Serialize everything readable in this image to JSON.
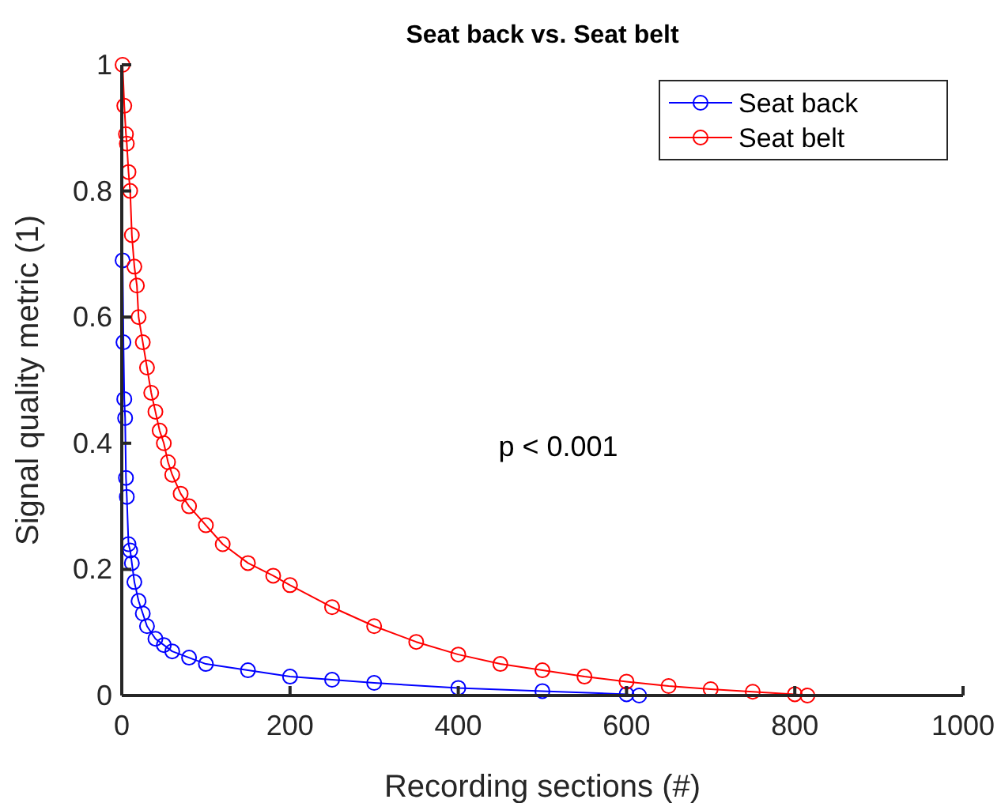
{
  "chart_data": {
    "type": "line",
    "title": "Seat back vs. Seat belt",
    "xlabel": "Recording sections (#)",
    "ylabel": "Signal quality metric (1)",
    "xlim": [
      0,
      1000
    ],
    "xticks": [
      0,
      200,
      400,
      600,
      800,
      1000
    ],
    "ylim": [
      0,
      1
    ],
    "yticks": [
      0,
      0.2,
      0.4,
      0.6,
      0.8,
      1
    ],
    "marker": "circle",
    "legend": "top right",
    "annotations": [
      "p < 0.001"
    ],
    "series": [
      {
        "name": "Seat back",
        "color": "#0000ff",
        "x": [
          1,
          2,
          3,
          4,
          5,
          6,
          8,
          10,
          12,
          15,
          20,
          25,
          30,
          40,
          50,
          60,
          80,
          100,
          150,
          200,
          250,
          300,
          400,
          500,
          600,
          615
        ],
        "values": [
          0.69,
          0.56,
          0.47,
          0.44,
          0.345,
          0.315,
          0.24,
          0.23,
          0.21,
          0.18,
          0.15,
          0.13,
          0.11,
          0.09,
          0.08,
          0.07,
          0.06,
          0.05,
          0.04,
          0.03,
          0.025,
          0.02,
          0.012,
          0.007,
          0.002,
          0
        ]
      },
      {
        "name": "Seat belt",
        "color": "#ff0000",
        "x": [
          1,
          3,
          5,
          6,
          8,
          10,
          12,
          15,
          18,
          20,
          25,
          30,
          35,
          40,
          45,
          50,
          55,
          60,
          70,
          80,
          100,
          120,
          150,
          180,
          200,
          250,
          300,
          350,
          400,
          450,
          500,
          550,
          600,
          650,
          700,
          750,
          800,
          815
        ],
        "values": [
          1,
          0.935,
          0.89,
          0.875,
          0.83,
          0.8,
          0.73,
          0.68,
          0.65,
          0.6,
          0.56,
          0.52,
          0.48,
          0.45,
          0.42,
          0.4,
          0.37,
          0.35,
          0.32,
          0.3,
          0.27,
          0.24,
          0.21,
          0.19,
          0.175,
          0.14,
          0.11,
          0.085,
          0.065,
          0.05,
          0.04,
          0.03,
          0.022,
          0.015,
          0.01,
          0.006,
          0.002,
          0
        ]
      }
    ]
  }
}
